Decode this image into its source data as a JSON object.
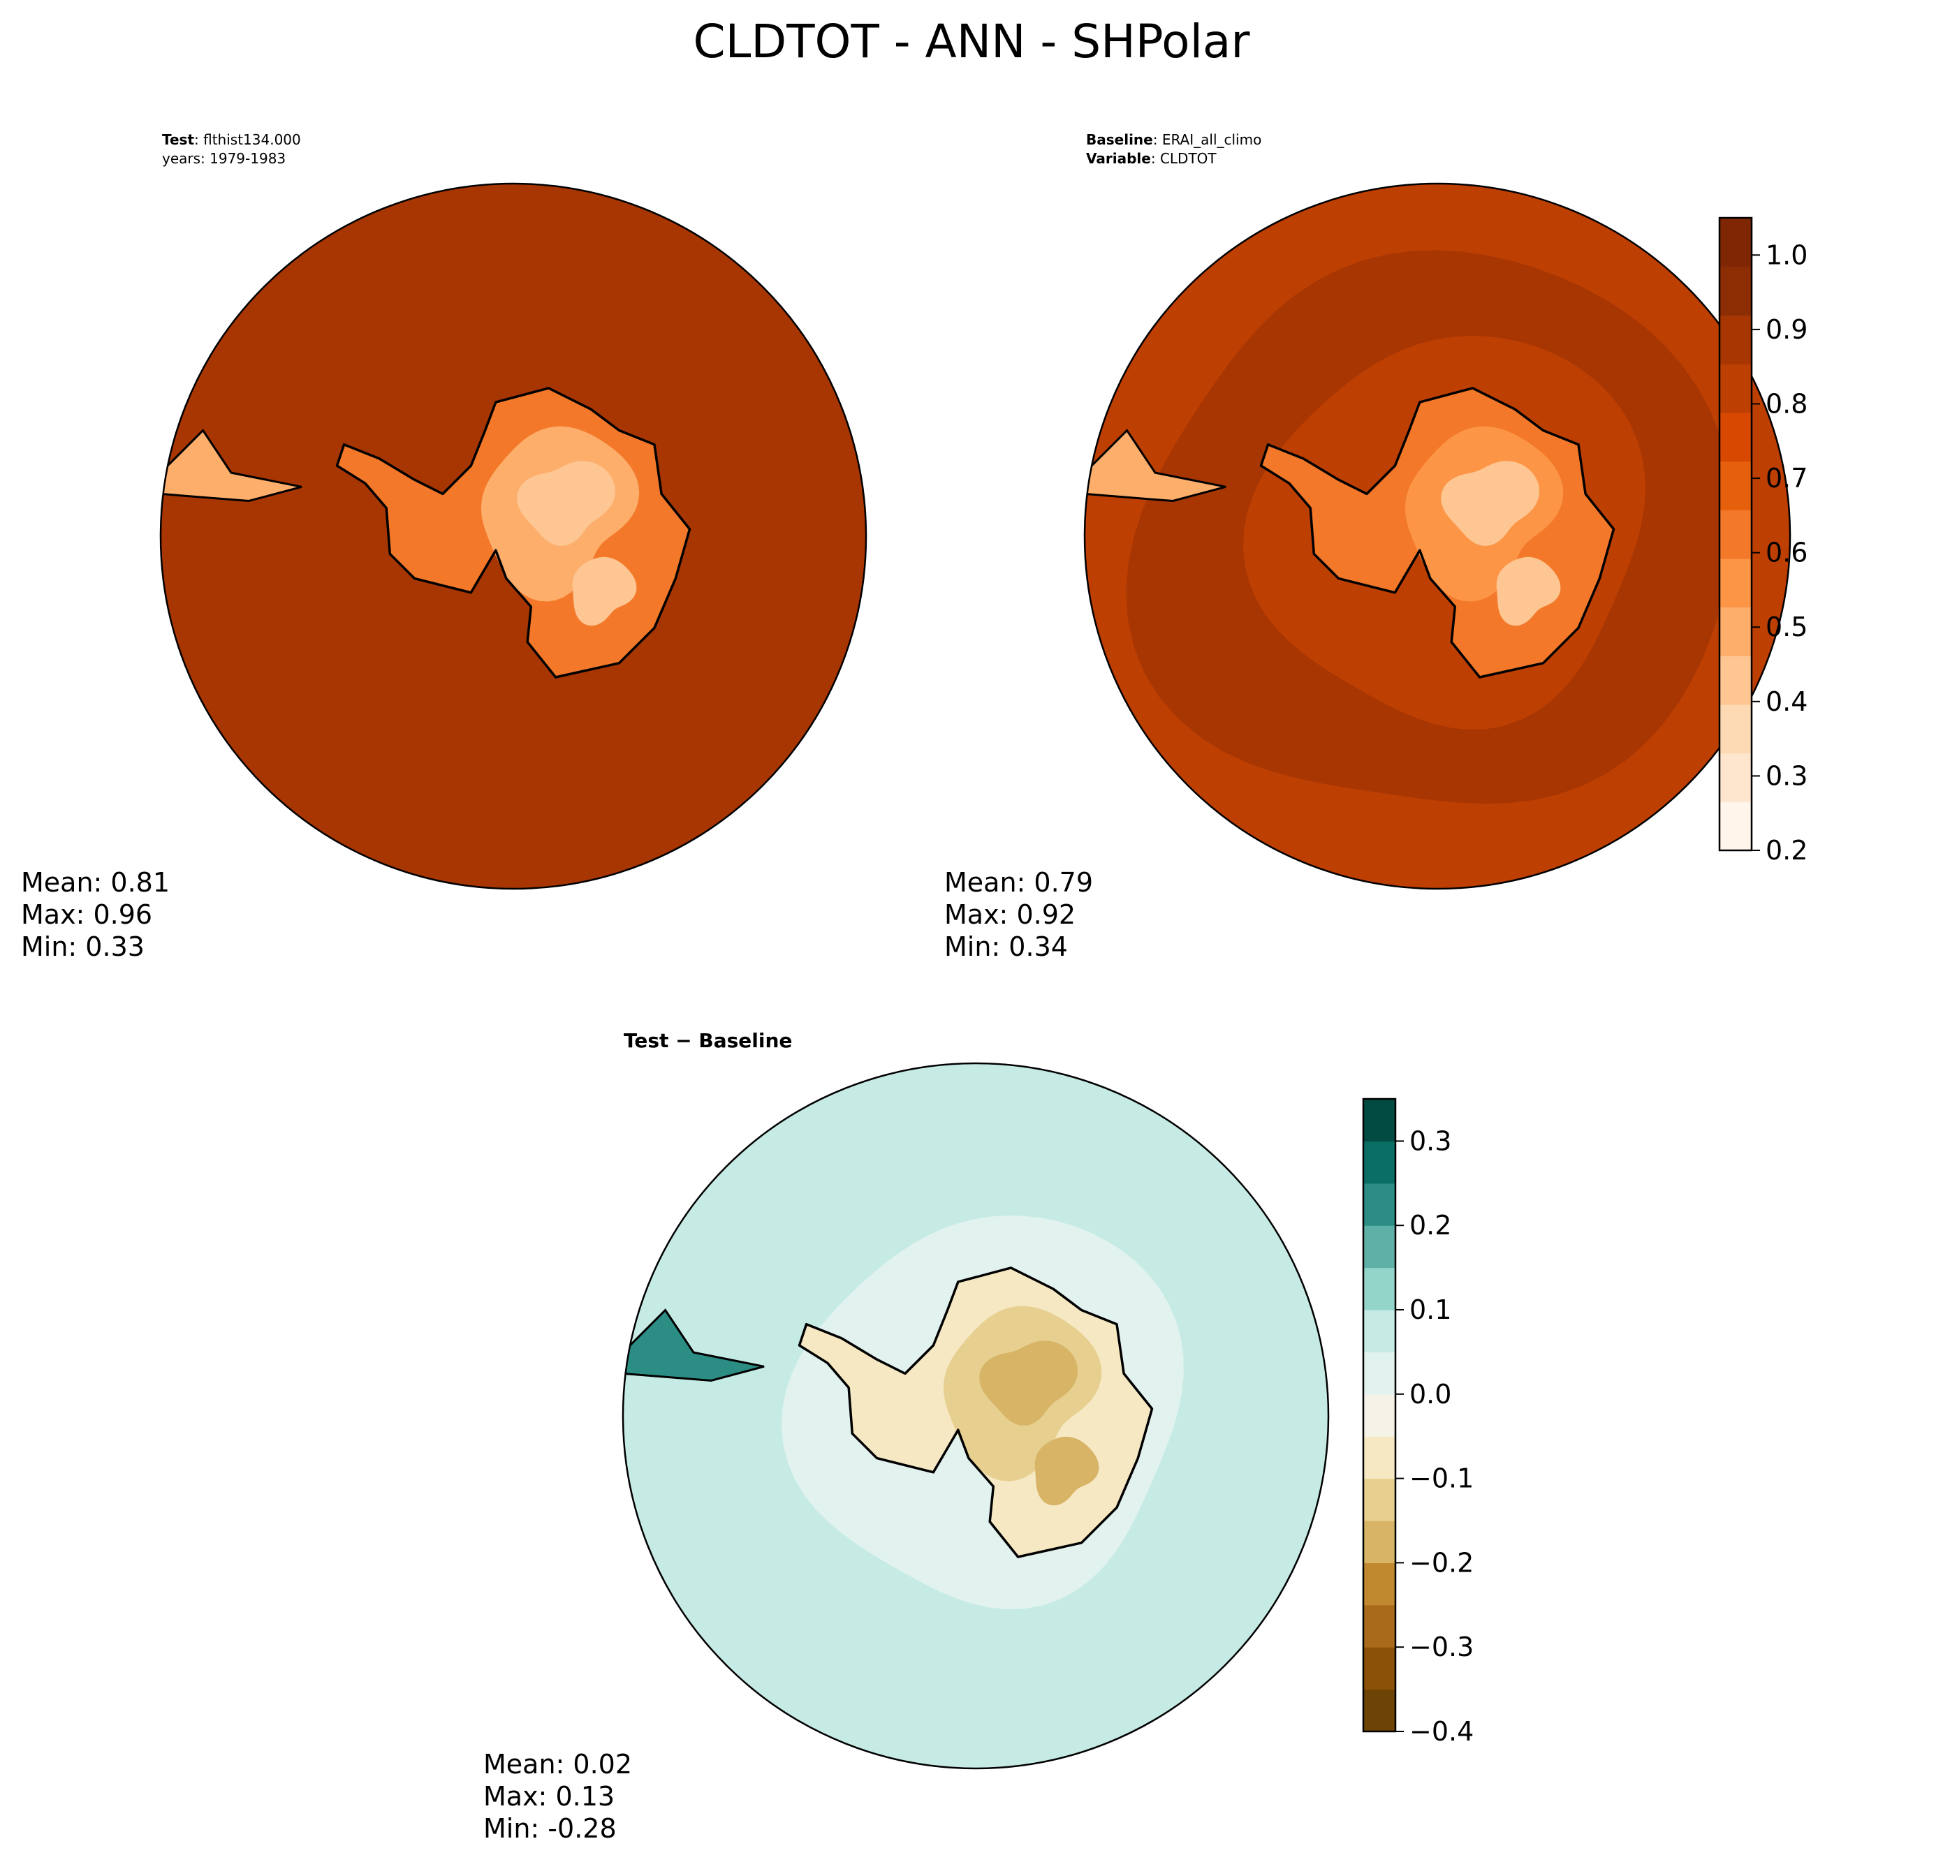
{
  "title": "CLDTOT - ANN - SHPolar",
  "colors": {
    "cloud_scale": [
      "#fff5eb",
      "#fee6ce",
      "#fdd9b4",
      "#fdc692",
      "#fdae6b",
      "#fd9547",
      "#f3782a",
      "#e65f0d",
      "#d84801",
      "#be3f02",
      "#a73603",
      "#8c2d04",
      "#7f2704"
    ],
    "diff_scale": [
      "#6d4306",
      "#8c5109",
      "#a96a1b",
      "#c1892f",
      "#d7b466",
      "#e6cf8f",
      "#f5e8c2",
      "#f5f3e8",
      "#e2f2ef",
      "#c6ebe5",
      "#94d5ca",
      "#5fb1a7",
      "#2c8d85",
      "#0a6e64",
      "#014b42"
    ],
    "coastline": "#000000"
  },
  "chart_data": [
    {
      "type": "heatmap",
      "panel": "test",
      "header": [
        {
          "bold": "Test",
          "text": ": flthist134.000"
        },
        {
          "bold": "",
          "text": "years: 1979-1983"
        }
      ],
      "stats": [
        "Mean:  0.81",
        "Max:  0.96",
        "Min:  0.33"
      ],
      "mean": 0.81,
      "max": 0.96,
      "min": 0.33,
      "ocean_value": 0.9,
      "outer_value": 0.86,
      "ice_core_value": 0.42
    },
    {
      "type": "heatmap",
      "panel": "baseline",
      "header": [
        {
          "bold": "Baseline",
          "text": ": ERAI_all_climo"
        },
        {
          "bold": "Variable",
          "text": ": CLDTOT"
        }
      ],
      "stats": [
        "Mean:  0.79",
        "Max:  0.92",
        "Min:  0.34"
      ],
      "mean": 0.79,
      "max": 0.92,
      "min": 0.34,
      "ocean_value": 0.86,
      "outer_value": 0.82,
      "ice_core_value": 0.45,
      "colorbar": {
        "ticks": [
          "0.2",
          "0.3",
          "0.4",
          "0.5",
          "0.6",
          "0.7",
          "0.8",
          "0.9",
          "1.0"
        ],
        "range": [
          0.2,
          1.05
        ]
      }
    },
    {
      "type": "heatmap",
      "panel": "difference",
      "header": [
        {
          "bold": "Test − Baseline",
          "text": ""
        }
      ],
      "stats": [
        "Mean:  0.02",
        "Max:  0.13",
        "Min: -0.28"
      ],
      "mean": 0.02,
      "max": 0.13,
      "min": -0.28,
      "ocean_value": 0.06,
      "outer_value": 0.08,
      "ice_core_value": -0.16,
      "colorbar": {
        "ticks": [
          "0.3",
          "0.2",
          "0.1",
          "0.0",
          "−0.1",
          "−0.2",
          "−0.3",
          "−0.4"
        ],
        "range": [
          -0.4,
          0.35
        ]
      }
    }
  ]
}
